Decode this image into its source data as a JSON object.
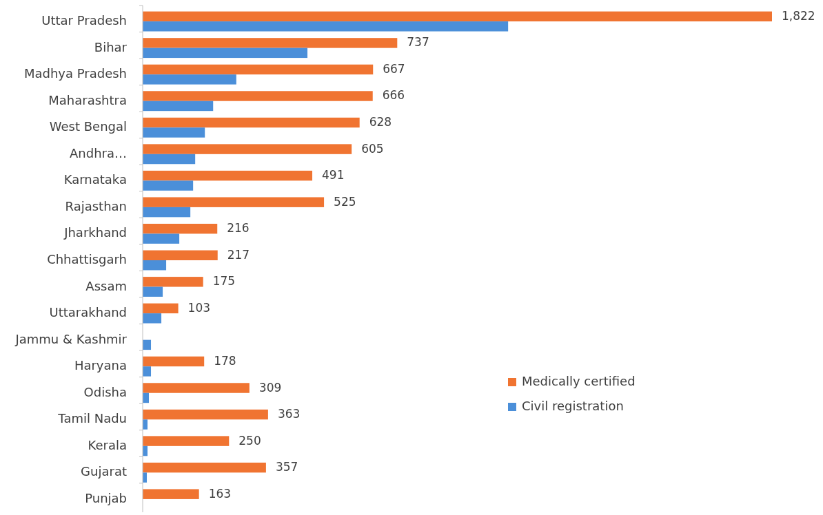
{
  "chart_data": {
    "type": "bar",
    "orientation": "horizontal",
    "categories": [
      "Uttar Pradesh",
      "Bihar",
      "Madhya Pradesh",
      "Maharashtra",
      "West Bengal",
      "Andhra…",
      "Karnataka",
      "Rajasthan",
      "Jharkhand",
      "Chhattisgarh",
      "Assam",
      "Uttarakhand",
      "Jammu & Kashmir",
      "Haryana",
      "Odisha",
      "Tamil Nadu",
      "Kerala",
      "Gujarat",
      "Punjab"
    ],
    "series": [
      {
        "name": "Medically certified",
        "color": "#f07431",
        "values": [
          1822,
          737,
          667,
          666,
          628,
          605,
          491,
          525,
          216,
          217,
          175,
          103,
          null,
          178,
          309,
          363,
          250,
          357,
          163
        ],
        "value_labels": [
          "1,822",
          "737",
          "667",
          "666",
          "628",
          "605",
          "491",
          "525",
          "216",
          "217",
          "175",
          "103",
          null,
          "178",
          "309",
          "363",
          "250",
          "357",
          "163"
        ]
      },
      {
        "name": "Civil registration",
        "color": "#4b8fd9",
        "values": [
          1058,
          477,
          271,
          204,
          180,
          152,
          146,
          138,
          106,
          68,
          58,
          54,
          24,
          24,
          18,
          14,
          14,
          12,
          null
        ]
      }
    ],
    "legend": "right"
  }
}
